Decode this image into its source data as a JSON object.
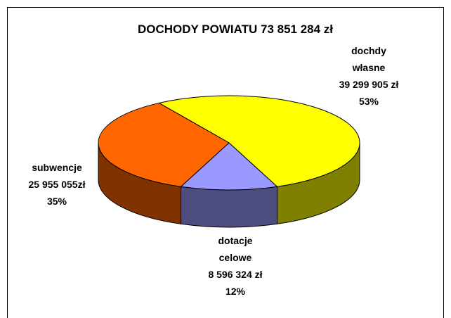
{
  "chart_data": {
    "type": "pie",
    "title": "DOCHODY POWIATU  73 851 284 zł",
    "categories": [
      "dochdy własne",
      "dotacje celowe",
      "subwencje"
    ],
    "amount_labels": [
      "39 299 905 zł",
      "8 596 324 zł",
      "25 955 055zł"
    ],
    "values": [
      53,
      12,
      35
    ],
    "value_labels": [
      "53%",
      "12%",
      "35%"
    ],
    "colors": [
      "#ffff00",
      "#9999ff",
      "#ff6600"
    ],
    "side_colors": [
      "#808000",
      "#4d4d80",
      "#803300"
    ],
    "three_d": true
  }
}
